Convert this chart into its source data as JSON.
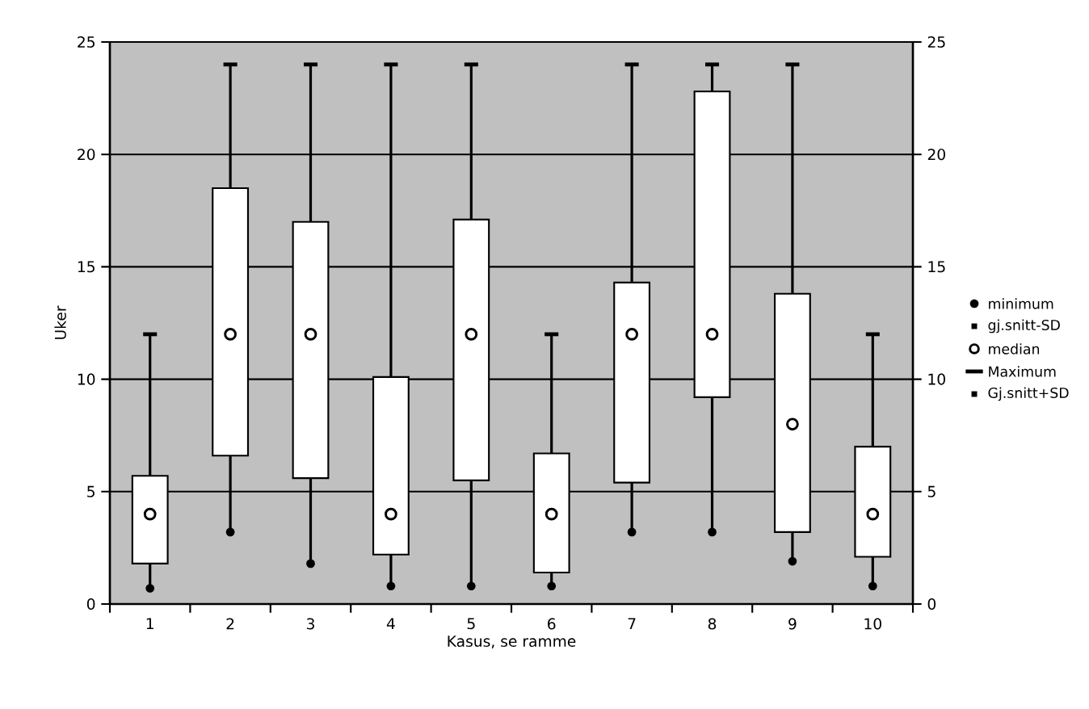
{
  "chart_data": {
    "type": "box",
    "xlabel": "Kasus, se ramme",
    "ylabel": "Uker",
    "categories": [
      "1",
      "2",
      "3",
      "4",
      "5",
      "6",
      "7",
      "8",
      "9",
      "10"
    ],
    "boxes": [
      {
        "low": 0.7,
        "q1": 1.8,
        "median": 4,
        "q3": 5.7,
        "high": 12
      },
      {
        "low": 3.2,
        "q1": 6.6,
        "median": 12,
        "q3": 18.5,
        "high": 24
      },
      {
        "low": 1.8,
        "q1": 5.6,
        "median": 12,
        "q3": 17.0,
        "high": 24
      },
      {
        "low": 0.8,
        "q1": 2.2,
        "median": 4,
        "q3": 10.1,
        "high": 24
      },
      {
        "low": 0.8,
        "q1": 5.5,
        "median": 12,
        "q3": 17.1,
        "high": 24
      },
      {
        "low": 0.8,
        "q1": 1.4,
        "median": 4,
        "q3": 6.7,
        "high": 12
      },
      {
        "low": 3.2,
        "q1": 5.4,
        "median": 12,
        "q3": 14.3,
        "high": 24
      },
      {
        "low": 3.2,
        "q1": 9.2,
        "median": 12,
        "q3": 22.8,
        "high": 24
      },
      {
        "low": 1.9,
        "q1": 3.2,
        "median": 8,
        "q3": 13.8,
        "high": 24
      },
      {
        "low": 0.8,
        "q1": 2.1,
        "median": 4,
        "q3": 7.0,
        "high": 12
      }
    ],
    "annotations": [
      "minimum",
      "gj.snitt-SD",
      "median",
      "Maximum",
      "Gj.snitt+SD"
    ],
    "ylim": [
      0,
      25
    ],
    "yticks": [
      0,
      5,
      10,
      15,
      20,
      25
    ],
    "y2lim": [
      0,
      25
    ],
    "y2ticks": [
      0,
      5,
      10,
      15,
      20,
      25
    ],
    "grid": "y"
  }
}
